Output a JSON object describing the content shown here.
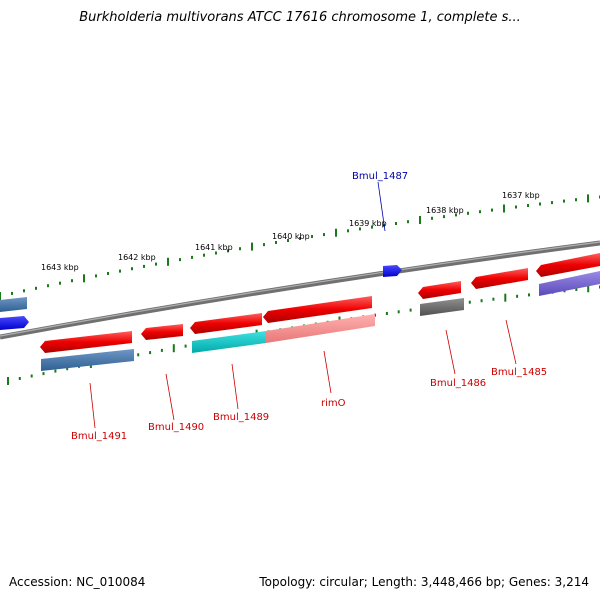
{
  "title": "Burkholderia multivorans ATCC 17616 chromosome 1, complete s...",
  "footer": {
    "accession": "Accession: NC_010084",
    "stats": "Topology: circular; Length: 3,448,466 bp; Genes: 3,214"
  },
  "colors": {
    "backbone": "#808080",
    "tick": "#1a7a1a",
    "label_red": "#cc0000",
    "label_blue": "#0000aa"
  },
  "kbp_labels": [
    "1643 kbp",
    "1642 kbp",
    "1641 kbp",
    "1640 kbp",
    "1639 kbp",
    "1638 kbp",
    "1637 kbp"
  ],
  "genes": [
    {
      "label": "Bmul_1487",
      "strand": "forward",
      "color": "#0000ee"
    },
    {
      "label": "Bmul_1491",
      "strand": "reverse",
      "color": "#ee0000"
    },
    {
      "label": "Bmul_1490",
      "strand": "reverse",
      "color": "#ee0000"
    },
    {
      "label": "Bmul_1489",
      "strand": "reverse",
      "color": "#ee0000"
    },
    {
      "label": "rimO",
      "strand": "reverse",
      "color": "#ee0000"
    },
    {
      "label": "Bmul_1486",
      "strand": "reverse",
      "color": "#ee0000"
    },
    {
      "label": "Bmul_1485",
      "strand": "reverse",
      "color": "#ee0000"
    }
  ]
}
